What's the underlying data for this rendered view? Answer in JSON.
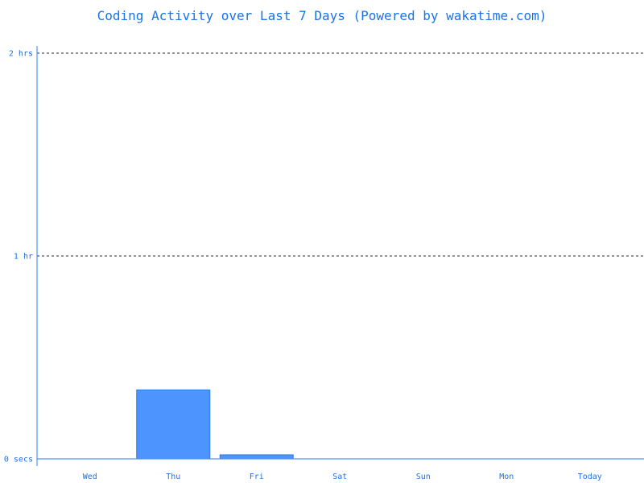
{
  "chart_data": {
    "type": "bar",
    "title": "Coding Activity over Last 7 Days (Powered by wakatime.com)",
    "xlabel": "",
    "ylabel": "",
    "categories": [
      "Wed",
      "Thu",
      "Fri",
      "Sat",
      "Sun",
      "Mon",
      "Today"
    ],
    "values": [
      0,
      0.34,
      0.02,
      0,
      0,
      0,
      0
    ],
    "value_units": "hours",
    "ylim": [
      0,
      2
    ],
    "yticks": [
      {
        "value": 0,
        "label": "0 secs"
      },
      {
        "value": 1,
        "label": "1 hr"
      },
      {
        "value": 2,
        "label": "2 hrs"
      }
    ],
    "grid": "dashed horizontal at 1 hr and 2 hrs",
    "colors": {
      "bar_fill": "#4d94ff",
      "bar_stroke": "#2a7de1",
      "axis": "#4d94ff",
      "text": "#1a73e8",
      "grid": "#555555"
    }
  }
}
